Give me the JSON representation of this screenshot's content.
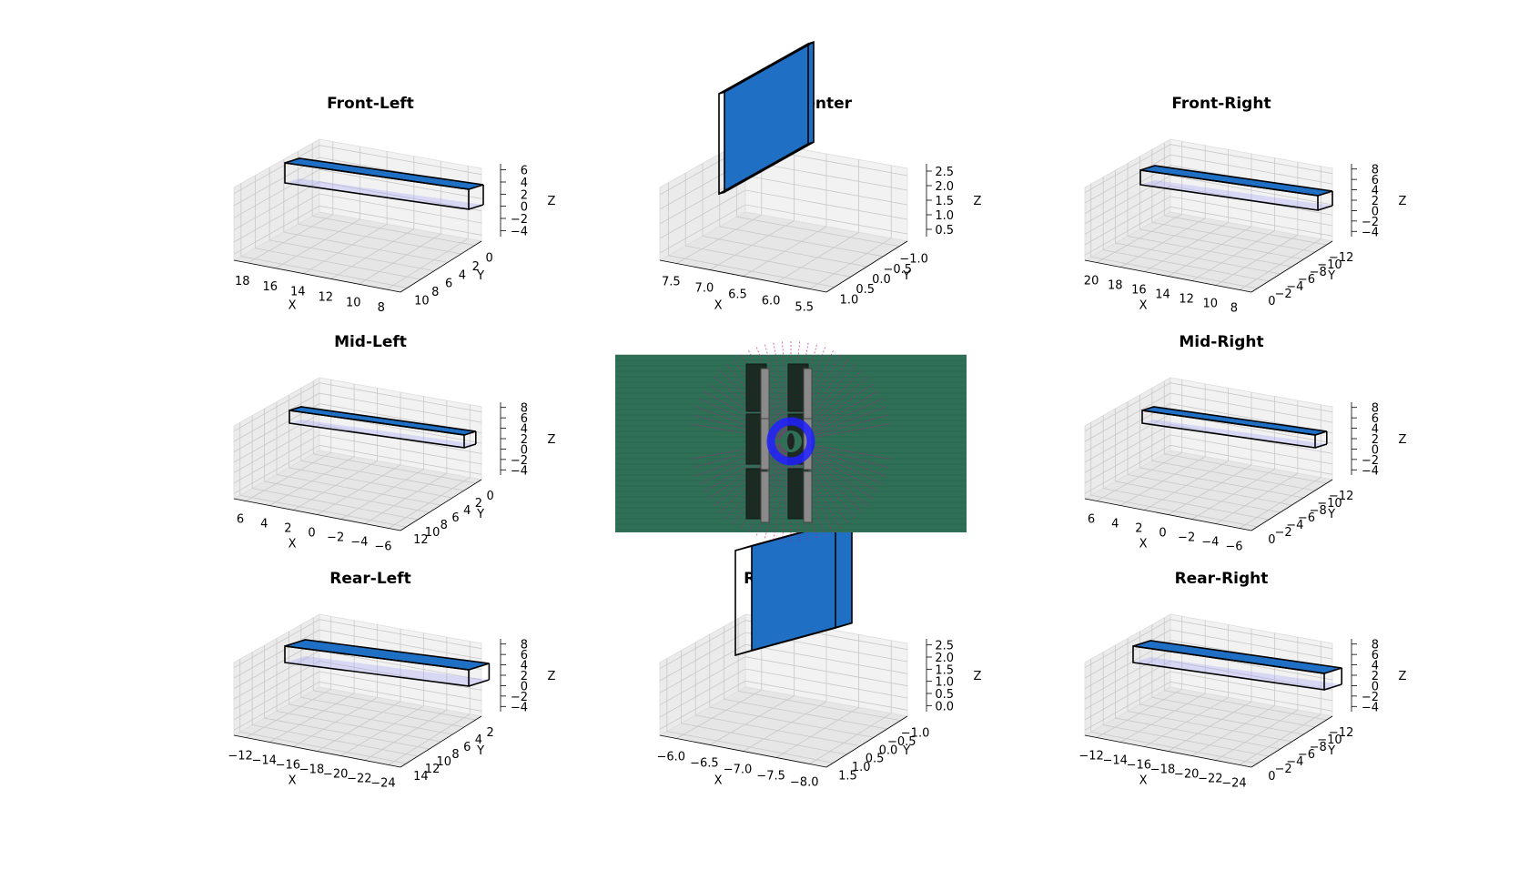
{
  "figure": {
    "center_image": {
      "background": "#2e6f55"
    },
    "colors": {
      "point_fill": "#1f6fc5",
      "box_edge": "#000000",
      "box_face": "#9696ff"
    }
  },
  "chart_data": [
    {
      "type": "scatter",
      "subtype": "3d",
      "title": "Front-Left",
      "xlabel": "X",
      "ylabel": "Y",
      "zlabel": "Z",
      "x_ticks": [
        "18",
        "16",
        "14",
        "12",
        "10",
        "8"
      ],
      "y_ticks": [
        "10",
        "8",
        "6",
        "4",
        "2",
        "0"
      ],
      "z_ticks": [
        "6",
        "4",
        "2",
        "0",
        "−2",
        "−4"
      ],
      "xlim": [
        19,
        7
      ],
      "ylim": [
        11,
        -1
      ],
      "zlim": [
        -5,
        7
      ],
      "grid": true
    },
    {
      "type": "scatter",
      "subtype": "3d",
      "title": "Front-Center",
      "xlabel": "X",
      "ylabel": "Y",
      "zlabel": "Z",
      "x_ticks": [
        "7.5",
        "7.0",
        "6.5",
        "6.0",
        "5.5"
      ],
      "y_ticks": [
        "1.0",
        "0.5",
        "0.0",
        "−0.5",
        "−1.0"
      ],
      "z_ticks": [
        "2.5",
        "2.0",
        "1.5",
        "1.0",
        "0.5"
      ],
      "xlim": [
        7.7,
        5.3
      ],
      "ylim": [
        1.2,
        -1.2
      ],
      "zlim": [
        0.2,
        2.6
      ],
      "grid": true
    },
    {
      "type": "scatter",
      "subtype": "3d",
      "title": "Front-Right",
      "xlabel": "X",
      "ylabel": "Y",
      "zlabel": "Z",
      "x_ticks": [
        "20",
        "18",
        "16",
        "14",
        "12",
        "10",
        "8"
      ],
      "y_ticks": [
        "0",
        "−2",
        "−4",
        "−6",
        "−8",
        "−10",
        "−12"
      ],
      "z_ticks": [
        "8",
        "6",
        "4",
        "2",
        "0",
        "−2",
        "−4"
      ],
      "xlim": [
        21,
        7
      ],
      "ylim": [
        1,
        -13
      ],
      "zlim": [
        -5,
        9
      ],
      "grid": true
    },
    {
      "type": "scatter",
      "subtype": "3d",
      "title": "Mid-Left",
      "xlabel": "X",
      "ylabel": "Y",
      "zlabel": "Z",
      "x_ticks": [
        "6",
        "4",
        "2",
        "0",
        "−2",
        "−4",
        "−6"
      ],
      "y_ticks": [
        "12",
        "10",
        "8",
        "6",
        "4",
        "2",
        "0"
      ],
      "z_ticks": [
        "8",
        "6",
        "4",
        "2",
        "0",
        "−2",
        "−4"
      ],
      "xlim": [
        7,
        -7
      ],
      "ylim": [
        13,
        -1
      ],
      "zlim": [
        -5,
        9
      ],
      "grid": true
    },
    {
      "type": "scatter",
      "subtype": "3d",
      "title": "Mid-Right",
      "xlabel": "X",
      "ylabel": "Y",
      "zlabel": "Z",
      "x_ticks": [
        "6",
        "4",
        "2",
        "0",
        "−2",
        "−4",
        "−6"
      ],
      "y_ticks": [
        "0",
        "−2",
        "−4",
        "−6",
        "−8",
        "−10",
        "−12"
      ],
      "z_ticks": [
        "8",
        "6",
        "4",
        "2",
        "0",
        "−2",
        "−4"
      ],
      "xlim": [
        7,
        -7
      ],
      "ylim": [
        1,
        -13
      ],
      "zlim": [
        -5,
        9
      ],
      "grid": true
    },
    {
      "type": "scatter",
      "subtype": "3d",
      "title": "Rear-Left",
      "xlabel": "X",
      "ylabel": "Y",
      "zlabel": "Z",
      "x_ticks": [
        "−12",
        "−14",
        "−16",
        "−18",
        "−20",
        "−22",
        "−24"
      ],
      "y_ticks": [
        "14",
        "12",
        "10",
        "8",
        "6",
        "4",
        "2"
      ],
      "z_ticks": [
        "8",
        "6",
        "4",
        "2",
        "0",
        "−2",
        "−4"
      ],
      "xlim": [
        -11,
        -25
      ],
      "ylim": [
        15,
        1
      ],
      "zlim": [
        -5,
        9
      ],
      "grid": true
    },
    {
      "type": "scatter",
      "subtype": "3d",
      "title": "Rear-Center",
      "xlabel": "X",
      "ylabel": "Y",
      "zlabel": "Z",
      "x_ticks": [
        "−6.0",
        "−6.5",
        "−7.0",
        "−7.5",
        "−8.0"
      ],
      "y_ticks": [
        "1.5",
        "1.0",
        "0.5",
        "0.0",
        "−0.5",
        "−1.0"
      ],
      "z_ticks": [
        "2.5",
        "2.0",
        "1.5",
        "1.0",
        "0.5",
        "0.0"
      ],
      "xlim": [
        -5.8,
        -8.2
      ],
      "ylim": [
        1.7,
        -1.2
      ],
      "zlim": [
        -0.2,
        2.7
      ],
      "grid": true
    },
    {
      "type": "scatter",
      "subtype": "3d",
      "title": "Rear-Right",
      "xlabel": "X",
      "ylabel": "Y",
      "zlabel": "Z",
      "x_ticks": [
        "−12",
        "−14",
        "−16",
        "−18",
        "−20",
        "−22",
        "−24"
      ],
      "y_ticks": [
        "0",
        "−2",
        "−4",
        "−6",
        "−8",
        "−10",
        "−12"
      ],
      "z_ticks": [
        "8",
        "6",
        "4",
        "2",
        "0",
        "−2",
        "−4"
      ],
      "xlim": [
        -11,
        -25
      ],
      "ylim": [
        1,
        -13
      ],
      "zlim": [
        -5,
        9
      ],
      "grid": true
    }
  ]
}
